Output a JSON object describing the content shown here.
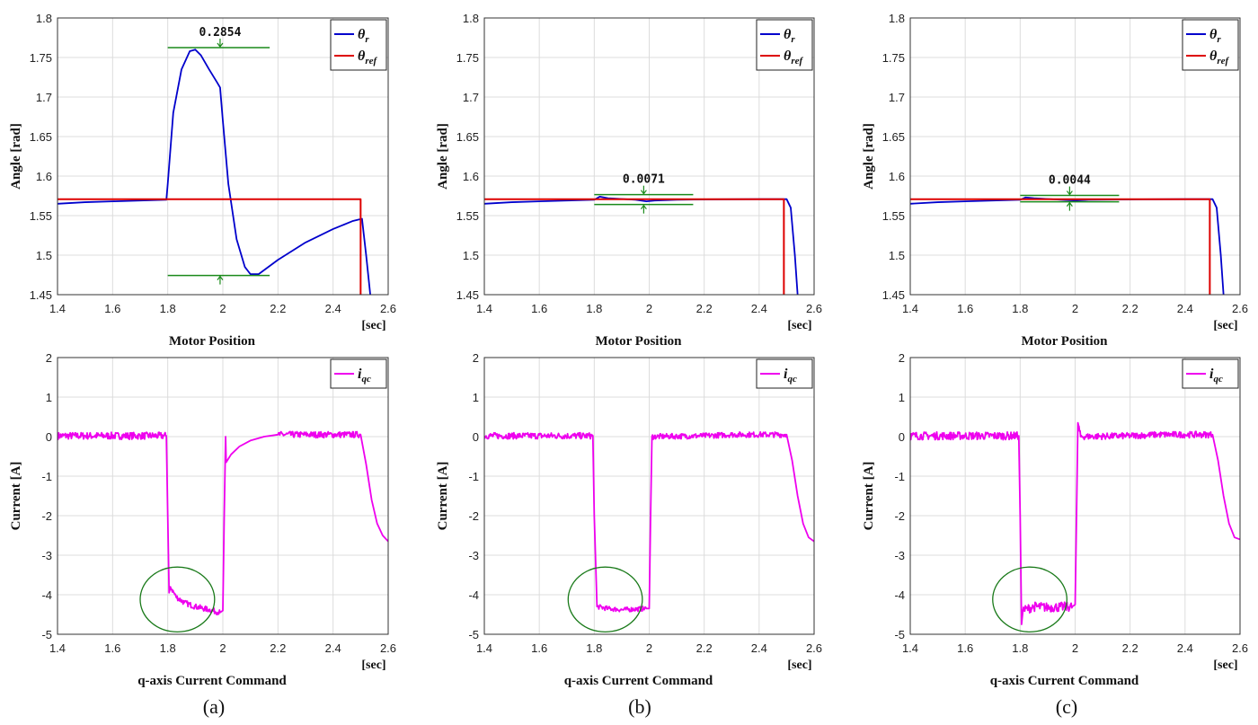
{
  "chart_data": [
    {
      "type": "line",
      "id": "a-top",
      "ylabel": "Angle [rad]",
      "xunit": "[sec]",
      "title": "Motor Position",
      "xlim": [
        1.4,
        2.6
      ],
      "ylim": [
        1.45,
        1.8
      ],
      "xticks": [
        "1.4",
        "1.6",
        "1.8",
        "2",
        "2.2",
        "2.4",
        "2.6"
      ],
      "yticks": [
        "1.45",
        "1.5",
        "1.55",
        "1.6",
        "1.65",
        "1.7",
        "1.75",
        "1.8"
      ],
      "legend": [
        {
          "sym": "θ",
          "sub": "r",
          "color": "#0000cc"
        },
        {
          "sym": "θ",
          "sub": "ref",
          "color": "#dd0000"
        }
      ],
      "legend_position": "top-right",
      "grid": true,
      "annotation": {
        "label": "0.2854",
        "upper": 1.7625,
        "lower": 1.4743,
        "x": [
          1.8,
          2.17
        ],
        "arrow_x": 1.99
      },
      "series": [
        {
          "name": "θr",
          "color": "#0000cc",
          "points": [
            [
              1.4,
              1.565
            ],
            [
              1.5,
              1.567
            ],
            [
              1.6,
              1.568
            ],
            [
              1.7,
              1.569
            ],
            [
              1.795,
              1.57
            ],
            [
              1.8,
              1.59
            ],
            [
              1.82,
              1.68
            ],
            [
              1.85,
              1.735
            ],
            [
              1.88,
              1.758
            ],
            [
              1.9,
              1.76
            ],
            [
              1.92,
              1.753
            ],
            [
              1.95,
              1.735
            ],
            [
              1.98,
              1.718
            ],
            [
              1.99,
              1.712
            ],
            [
              2.0,
              1.67
            ],
            [
              2.02,
              1.59
            ],
            [
              2.05,
              1.52
            ],
            [
              2.08,
              1.485
            ],
            [
              2.1,
              1.476
            ],
            [
              2.13,
              1.476
            ],
            [
              2.2,
              1.494
            ],
            [
              2.3,
              1.516
            ],
            [
              2.4,
              1.533
            ],
            [
              2.47,
              1.543
            ],
            [
              2.505,
              1.546
            ],
            [
              2.52,
              1.5
            ],
            [
              2.535,
              1.45
            ]
          ]
        },
        {
          "name": "θref",
          "color": "#dd0000",
          "points": [
            [
              1.4,
              1.5708
            ],
            [
              2.5,
              1.5708
            ],
            [
              2.5,
              1.45
            ]
          ]
        }
      ]
    },
    {
      "type": "line",
      "id": "b-top",
      "ylabel": "Angle [rad]",
      "xunit": "[sec]",
      "title": "Motor Position",
      "xlim": [
        1.4,
        2.6
      ],
      "ylim": [
        1.45,
        1.8
      ],
      "xticks": [
        "1.4",
        "1.6",
        "1.8",
        "2",
        "2.2",
        "2.4",
        "2.6"
      ],
      "yticks": [
        "1.45",
        "1.5",
        "1.55",
        "1.6",
        "1.65",
        "1.7",
        "1.75",
        "1.8"
      ],
      "legend": [
        {
          "sym": "θ",
          "sub": "r",
          "color": "#0000cc"
        },
        {
          "sym": "θ",
          "sub": "ref",
          "color": "#dd0000"
        }
      ],
      "legend_position": "top-right",
      "grid": true,
      "annotation": {
        "label": "0.0071",
        "upper": 1.5765,
        "lower": 1.564,
        "x": [
          1.8,
          2.16
        ],
        "arrow_x": 1.98
      },
      "series": [
        {
          "name": "θr",
          "color": "#0000cc",
          "points": [
            [
              1.4,
              1.565
            ],
            [
              1.5,
              1.567
            ],
            [
              1.6,
              1.568
            ],
            [
              1.7,
              1.569
            ],
            [
              1.8,
              1.57
            ],
            [
              1.82,
              1.574
            ],
            [
              1.85,
              1.572
            ],
            [
              1.9,
              1.571
            ],
            [
              1.95,
              1.57
            ],
            [
              1.99,
              1.568
            ],
            [
              2.02,
              1.569
            ],
            [
              2.1,
              1.57
            ],
            [
              2.2,
              1.5705
            ],
            [
              2.4,
              1.5708
            ],
            [
              2.5,
              1.5708
            ],
            [
              2.515,
              1.56
            ],
            [
              2.53,
              1.5
            ],
            [
              2.54,
              1.45
            ]
          ]
        },
        {
          "name": "θref",
          "color": "#dd0000",
          "points": [
            [
              1.4,
              1.5708
            ],
            [
              2.49,
              1.5708
            ],
            [
              2.49,
              1.45
            ]
          ]
        }
      ]
    },
    {
      "type": "line",
      "id": "c-top",
      "ylabel": "Angle [rad]",
      "xunit": "[sec]",
      "title": "Motor Position",
      "xlim": [
        1.4,
        2.6
      ],
      "ylim": [
        1.45,
        1.8
      ],
      "xticks": [
        "1.4",
        "1.6",
        "1.8",
        "2",
        "2.2",
        "2.4",
        "2.6"
      ],
      "yticks": [
        "1.45",
        "1.5",
        "1.55",
        "1.6",
        "1.65",
        "1.7",
        "1.75",
        "1.8"
      ],
      "legend": [
        {
          "sym": "θ",
          "sub": "r",
          "color": "#0000cc"
        },
        {
          "sym": "θ",
          "sub": "ref",
          "color": "#dd0000"
        }
      ],
      "legend_position": "top-right",
      "grid": true,
      "annotation": {
        "label": "0.0044",
        "upper": 1.5755,
        "lower": 1.5675,
        "x": [
          1.8,
          2.16
        ],
        "arrow_x": 1.98
      },
      "series": [
        {
          "name": "θr",
          "color": "#0000cc",
          "points": [
            [
              1.4,
              1.565
            ],
            [
              1.5,
              1.567
            ],
            [
              1.6,
              1.568
            ],
            [
              1.7,
              1.569
            ],
            [
              1.8,
              1.57
            ],
            [
              1.82,
              1.573
            ],
            [
              1.85,
              1.572
            ],
            [
              1.9,
              1.571
            ],
            [
              1.95,
              1.57
            ],
            [
              2.0,
              1.569
            ],
            [
              2.05,
              1.57
            ],
            [
              2.2,
              1.5705
            ],
            [
              2.4,
              1.5708
            ],
            [
              2.5,
              1.5708
            ],
            [
              2.515,
              1.56
            ],
            [
              2.53,
              1.5
            ],
            [
              2.54,
              1.45
            ]
          ]
        },
        {
          "name": "θref",
          "color": "#dd0000",
          "points": [
            [
              1.4,
              1.5708
            ],
            [
              2.49,
              1.5708
            ],
            [
              2.49,
              1.45
            ]
          ]
        }
      ]
    },
    {
      "type": "line",
      "id": "a-bot",
      "ylabel": "Current [A]",
      "xunit": "[sec]",
      "title": "q-axis Current Command",
      "xlim": [
        1.4,
        2.6
      ],
      "ylim": [
        -5,
        2
      ],
      "xticks": [
        "1.4",
        "1.6",
        "1.8",
        "2",
        "2.2",
        "2.4",
        "2.6"
      ],
      "yticks": [
        "-5",
        "-4",
        "-3",
        "-2",
        "-1",
        "0",
        "1",
        "2"
      ],
      "legend": [
        {
          "sym": "i",
          "sub": "qc",
          "color": "#ee00ee"
        }
      ],
      "legend_position": "top-right",
      "grid": true,
      "highlight_ellipse": {
        "cx": 1.835,
        "cy": -4.12,
        "rx": 0.135,
        "ry": 0.82
      },
      "series": [
        {
          "name": "iqc",
          "color": "#ee00ee",
          "noise": [
            [
              1.4,
              1.795,
              0.09
            ],
            [
              1.81,
              1.99,
              0.07
            ],
            [
              2.2,
              2.5,
              0.08
            ]
          ],
          "points": [
            [
              1.4,
              0.02
            ],
            [
              1.795,
              0.02
            ],
            [
              1.8,
              -2.0
            ],
            [
              1.805,
              -3.95
            ],
            [
              1.81,
              -3.8
            ],
            [
              1.83,
              -4.05
            ],
            [
              1.86,
              -4.2
            ],
            [
              1.9,
              -4.3
            ],
            [
              1.95,
              -4.38
            ],
            [
              1.99,
              -4.45
            ],
            [
              2.0,
              -4.4
            ],
            [
              2.005,
              -2.0
            ],
            [
              2.01,
              0.0
            ],
            [
              2.012,
              -0.65
            ],
            [
              2.03,
              -0.45
            ],
            [
              2.06,
              -0.25
            ],
            [
              2.1,
              -0.1
            ],
            [
              2.15,
              0.0
            ],
            [
              2.2,
              0.05
            ],
            [
              2.3,
              0.05
            ],
            [
              2.4,
              0.05
            ],
            [
              2.5,
              0.05
            ],
            [
              2.52,
              -0.7
            ],
            [
              2.54,
              -1.6
            ],
            [
              2.56,
              -2.2
            ],
            [
              2.58,
              -2.5
            ],
            [
              2.6,
              -2.65
            ]
          ]
        }
      ]
    },
    {
      "type": "line",
      "id": "b-bot",
      "ylabel": "Current [A]",
      "xunit": "[sec]",
      "title": "q-axis Current Command",
      "xlim": [
        1.4,
        2.6
      ],
      "ylim": [
        -5,
        2
      ],
      "xticks": [
        "1.4",
        "1.6",
        "1.8",
        "2",
        "2.2",
        "2.4",
        "2.6"
      ],
      "yticks": [
        "-5",
        "-4",
        "-3",
        "-2",
        "-1",
        "0",
        "1",
        "2"
      ],
      "legend": [
        {
          "sym": "i",
          "sub": "qc",
          "color": "#ee00ee"
        }
      ],
      "legend_position": "top-right",
      "grid": true,
      "highlight_ellipse": {
        "cx": 1.84,
        "cy": -4.12,
        "rx": 0.135,
        "ry": 0.82
      },
      "series": [
        {
          "name": "iqc",
          "color": "#ee00ee",
          "noise": [
            [
              1.4,
              1.795,
              0.08
            ],
            [
              1.81,
              1.99,
              0.06
            ],
            [
              2.01,
              2.5,
              0.07
            ]
          ],
          "points": [
            [
              1.4,
              0.02
            ],
            [
              1.795,
              0.02
            ],
            [
              1.8,
              -2.0
            ],
            [
              1.81,
              -4.3
            ],
            [
              1.85,
              -4.35
            ],
            [
              1.9,
              -4.38
            ],
            [
              1.99,
              -4.35
            ],
            [
              2.0,
              -4.35
            ],
            [
              2.005,
              -2.0
            ],
            [
              2.01,
              0.0
            ],
            [
              2.2,
              0.02
            ],
            [
              2.3,
              0.05
            ],
            [
              2.4,
              0.05
            ],
            [
              2.5,
              0.05
            ],
            [
              2.52,
              -0.6
            ],
            [
              2.54,
              -1.5
            ],
            [
              2.56,
              -2.2
            ],
            [
              2.58,
              -2.55
            ],
            [
              2.6,
              -2.65
            ]
          ]
        }
      ]
    },
    {
      "type": "line",
      "id": "c-bot",
      "ylabel": "Current [A]",
      "xunit": "[sec]",
      "title": "q-axis Current Command",
      "xlim": [
        1.4,
        2.6
      ],
      "ylim": [
        -5,
        2
      ],
      "xticks": [
        "1.4",
        "1.6",
        "1.8",
        "2",
        "2.2",
        "2.4",
        "2.6"
      ],
      "yticks": [
        "-5",
        "-4",
        "-3",
        "-2",
        "-1",
        "0",
        "1",
        "2"
      ],
      "legend": [
        {
          "sym": "i",
          "sub": "qc",
          "color": "#ee00ee"
        }
      ],
      "legend_position": "top-right",
      "grid": true,
      "highlight_ellipse": {
        "cx": 1.835,
        "cy": -4.12,
        "rx": 0.135,
        "ry": 0.82
      },
      "series": [
        {
          "name": "iqc",
          "color": "#ee00ee",
          "noise": [
            [
              1.4,
              1.795,
              0.1
            ],
            [
              1.81,
              1.99,
              0.12
            ],
            [
              2.01,
              2.5,
              0.08
            ]
          ],
          "points": [
            [
              1.4,
              0.02
            ],
            [
              1.795,
              0.02
            ],
            [
              1.8,
              -2.0
            ],
            [
              1.805,
              -4.75
            ],
            [
              1.81,
              -4.4
            ],
            [
              1.85,
              -4.3
            ],
            [
              1.9,
              -4.32
            ],
            [
              1.99,
              -4.3
            ],
            [
              2.0,
              -4.25
            ],
            [
              2.005,
              -2.0
            ],
            [
              2.01,
              0.35
            ],
            [
              2.02,
              0.0
            ],
            [
              2.2,
              0.02
            ],
            [
              2.3,
              0.05
            ],
            [
              2.4,
              0.05
            ],
            [
              2.5,
              0.05
            ],
            [
              2.52,
              -0.6
            ],
            [
              2.54,
              -1.5
            ],
            [
              2.56,
              -2.2
            ],
            [
              2.58,
              -2.55
            ],
            [
              2.6,
              -2.6
            ]
          ]
        }
      ]
    }
  ],
  "captions": [
    "(a)",
    "(b)",
    "(c)"
  ]
}
